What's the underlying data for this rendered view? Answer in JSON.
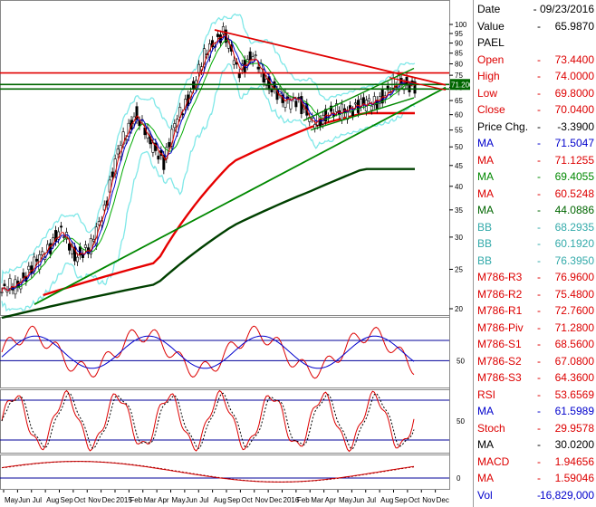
{
  "symbol": "PAEL",
  "axes": {
    "price_ticks": [
      "100",
      "95",
      "90",
      "85",
      "80",
      "75",
      "70",
      "65",
      "60",
      "55",
      "50",
      "45",
      "40",
      "35",
      "30",
      "25",
      "20"
    ],
    "price_tick_values": [
      100,
      95,
      90,
      85,
      80,
      75,
      70,
      65,
      60,
      55,
      50,
      45,
      40,
      35,
      30,
      25,
      20
    ],
    "rsi_tick": "50",
    "stoch_tick": "50",
    "macd_tick": "0",
    "months": [
      "May",
      "Jun",
      "Jul",
      "Aug",
      "Sep",
      "Oct",
      "Nov",
      "Dec",
      "2015",
      "Feb",
      "Mar",
      "Apr",
      "May",
      "Jun",
      "Jul",
      "Aug",
      "Sep",
      "Oct",
      "Nov",
      "Dec",
      "2016",
      "Feb",
      "Mar",
      "Apr",
      "May",
      "Jun",
      "Jul",
      "Aug",
      "Sep",
      "Oct",
      "Nov",
      "Dec"
    ],
    "last_price_tag": "71.200"
  },
  "colors": {
    "price_bar": "#000000",
    "ma_blue": "#0000cc",
    "ma_red": "#dd0000",
    "ma_green": "#00aa00",
    "ma_long_red": "#e60000",
    "ma_long_green": "#004000",
    "bollinger": "#7fe8e8",
    "trend_red": "#e00000",
    "trend_green": "#008800",
    "level_line": "#006600",
    "tag_bg": "#006600"
  },
  "data_panel": {
    "rows": [
      {
        "label": "Date",
        "value": "- 09/23/2016",
        "color": "#000000",
        "header": true
      },
      {
        "label": "Value",
        "value": "65.9870",
        "color": "#000000"
      },
      {
        "label": "PAEL",
        "value": "",
        "color": "#000000"
      },
      {
        "label": "Open",
        "value": "73.4400",
        "color": "#dd0000"
      },
      {
        "label": "High",
        "value": "74.0000",
        "color": "#dd0000"
      },
      {
        "label": "Low",
        "value": "69.8000",
        "color": "#dd0000"
      },
      {
        "label": "Close",
        "value": "70.0400",
        "color": "#dd0000"
      },
      {
        "label": "Price Chg.",
        "value": "-3.3900",
        "color": "#000000"
      },
      {
        "label": "MA",
        "value": "71.5047",
        "color": "#0000cc"
      },
      {
        "label": "MA",
        "value": "71.1255",
        "color": "#dd0000"
      },
      {
        "label": "MA",
        "value": "69.4055",
        "color": "#008800"
      },
      {
        "label": "MA",
        "value": "60.5248",
        "color": "#dd0000"
      },
      {
        "label": "MA",
        "value": "44.0886",
        "color": "#006600"
      },
      {
        "label": "BB",
        "value": "68.2935",
        "color": "#33aaaa"
      },
      {
        "label": "BB",
        "value": "60.1920",
        "color": "#33aaaa"
      },
      {
        "label": "BB",
        "value": "76.3950",
        "color": "#33aaaa"
      },
      {
        "label": "M786-R3",
        "value": "76.9600",
        "color": "#dd0000"
      },
      {
        "label": "M786-R2",
        "value": "75.4800",
        "color": "#dd0000"
      },
      {
        "label": "M786-R1",
        "value": "72.7600",
        "color": "#dd0000"
      },
      {
        "label": "M786-Piv",
        "value": "71.2800",
        "color": "#dd0000"
      },
      {
        "label": "M786-S1",
        "value": "68.5600",
        "color": "#dd0000"
      },
      {
        "label": "M786-S2",
        "value": "67.0800",
        "color": "#dd0000"
      },
      {
        "label": "M786-S3",
        "value": "64.3600",
        "color": "#dd0000"
      },
      {
        "label": "RSI",
        "value": "53.6569",
        "color": "#dd0000"
      },
      {
        "label": "MA",
        "value": "61.5989",
        "color": "#0000cc"
      },
      {
        "label": "Stoch",
        "value": "29.9578",
        "color": "#dd0000"
      },
      {
        "label": "MA",
        "value": "30.0200",
        "color": "#000000"
      },
      {
        "label": "MACD",
        "value": "1.94656",
        "color": "#dd0000"
      },
      {
        "label": "MA",
        "value": "1.59046",
        "color": "#dd0000"
      },
      {
        "label": "Vol",
        "value": "16,829,000",
        "color": "#0000cc"
      }
    ]
  },
  "chart_data": {
    "type": "line",
    "symbol": "PAEL",
    "x_range": [
      "2014-05",
      "2016-12"
    ],
    "ylim": [
      18,
      104
    ],
    "log_scale": true,
    "price_close_approx": [
      {
        "date": "2014-05",
        "close": 22
      },
      {
        "date": "2014-06",
        "close": 23
      },
      {
        "date": "2014-07",
        "close": 25
      },
      {
        "date": "2014-08",
        "close": 28
      },
      {
        "date": "2014-09",
        "close": 31
      },
      {
        "date": "2014-10",
        "close": 27
      },
      {
        "date": "2014-11",
        "close": 28
      },
      {
        "date": "2014-12",
        "close": 36
      },
      {
        "date": "2015-01",
        "close": 50
      },
      {
        "date": "2015-02",
        "close": 60
      },
      {
        "date": "2015-03",
        "close": 52
      },
      {
        "date": "2015-04",
        "close": 46
      },
      {
        "date": "2015-05",
        "close": 60
      },
      {
        "date": "2015-06",
        "close": 70
      },
      {
        "date": "2015-07",
        "close": 88
      },
      {
        "date": "2015-08",
        "close": 95
      },
      {
        "date": "2015-09",
        "close": 77
      },
      {
        "date": "2015-10",
        "close": 83
      },
      {
        "date": "2015-11",
        "close": 72
      },
      {
        "date": "2015-12",
        "close": 65
      },
      {
        "date": "2016-01",
        "close": 66
      },
      {
        "date": "2016-02",
        "close": 57
      },
      {
        "date": "2016-03",
        "close": 60
      },
      {
        "date": "2016-04",
        "close": 61
      },
      {
        "date": "2016-05",
        "close": 63
      },
      {
        "date": "2016-06",
        "close": 64
      },
      {
        "date": "2016-07",
        "close": 67
      },
      {
        "date": "2016-08",
        "close": 73
      },
      {
        "date": "2016-09",
        "close": 70
      }
    ],
    "horizontal_levels": [
      {
        "value": 76.0,
        "color": "red"
      },
      {
        "value": 71.2,
        "color": "green"
      },
      {
        "value": 69.4,
        "color": "green"
      }
    ],
    "long_moving_averages": [
      {
        "date": "2014-05",
        "ma_red": 20,
        "ma_green": 19
      },
      {
        "date": "2015-05",
        "ma_red": 26,
        "ma_green": 23
      },
      {
        "date": "2015-11",
        "ma_red": 46,
        "ma_green": 32
      },
      {
        "date": "2016-05",
        "ma_red": 56,
        "ma_green": 39
      },
      {
        "date": "2016-09",
        "ma_red": 60.5,
        "ma_green": 44.1
      }
    ],
    "indicators": {
      "rsi": {
        "reference": 50,
        "last": 53.6569,
        "ma_last": 61.5989
      },
      "stoch": {
        "reference": 50,
        "last": 29.9578,
        "ma_last": 30.02
      },
      "macd": {
        "reference": 0,
        "last": 1.94656,
        "ma_last": 1.59046
      }
    }
  }
}
